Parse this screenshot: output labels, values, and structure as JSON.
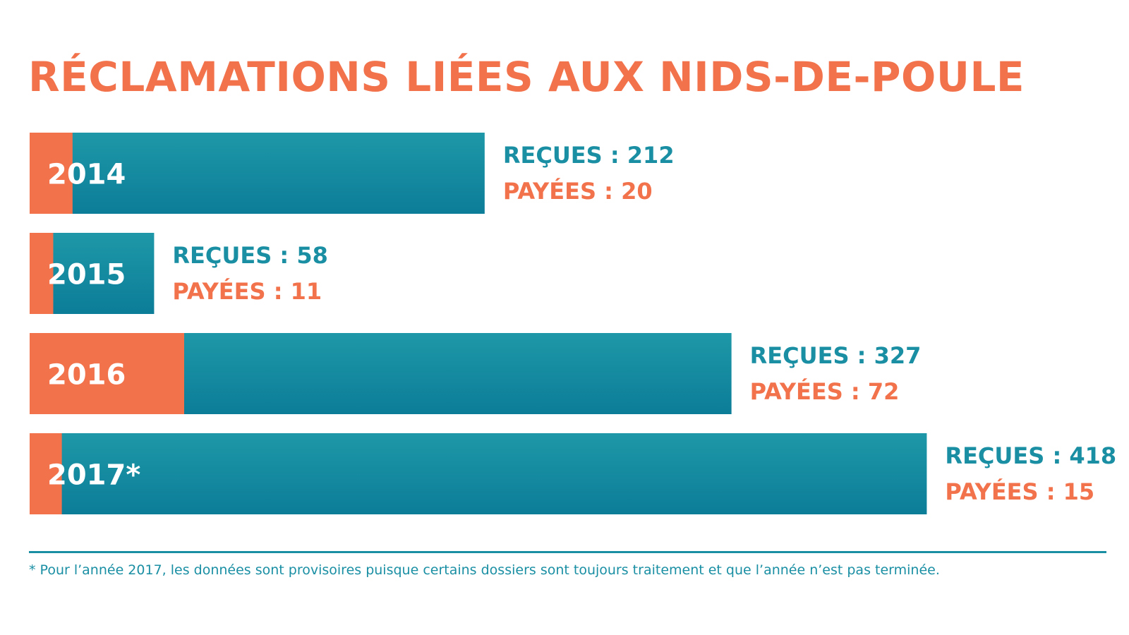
{
  "title": "RÉCLAMATIONS LIÉES AUX NIDS-DE-POULE",
  "footnote": "* Pour l’année 2017, les données sont provisoires puisque certains dossiers sont toujours traitement et que l’année n’est pas terminée.",
  "colors": {
    "orange": "#F2724C",
    "teal_top": "#1E98A8",
    "teal_bottom": "#0C7D98",
    "teal_text": "#1A8FA4",
    "label_white": "#FFFFFF"
  },
  "chart_data": {
    "type": "bar",
    "orientation": "horizontal",
    "categories": [
      "2014",
      "2015",
      "2016",
      "2017*"
    ],
    "series": [
      {
        "name": "REÇUES",
        "values": [
          212,
          58,
          327,
          418
        ]
      },
      {
        "name": "PAYÉES",
        "values": [
          20,
          11,
          72,
          15
        ]
      }
    ],
    "value_labels": [
      {
        "received": "REÇUES : 212",
        "paid": "PAYÉES : 20"
      },
      {
        "received": "REÇUES : 58",
        "paid": "PAYÉES : 11"
      },
      {
        "received": "REÇUES : 327",
        "paid": "PAYÉES : 72"
      },
      {
        "received": "REÇUES : 418",
        "paid": "PAYÉES : 15"
      }
    ],
    "grid": false,
    "legend": "none"
  }
}
